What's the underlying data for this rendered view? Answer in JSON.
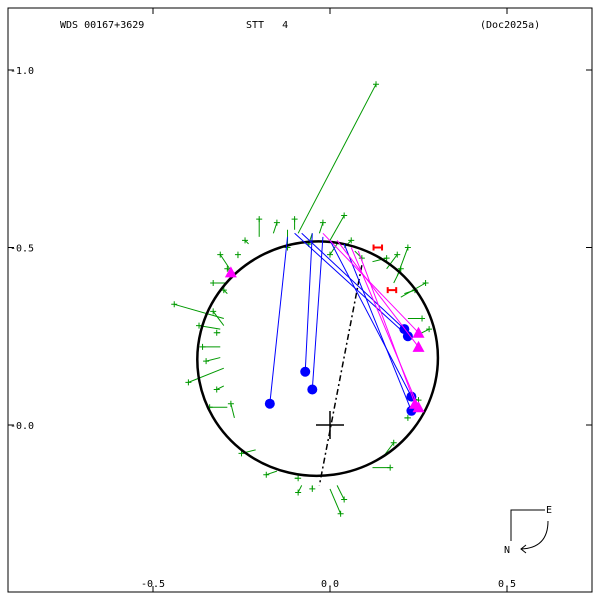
{
  "header": {
    "wds": "WDS 00167+3629",
    "discoverer": "STT   4",
    "reference": "(Doc2025a)"
  },
  "compass": {
    "east_label": "E",
    "north_label": "N"
  },
  "chart_data": {
    "type": "scatter",
    "title": "",
    "xlabel": "",
    "ylabel": "",
    "xlim": [
      -0.93,
      0.76
    ],
    "ylim": [
      -0.49,
      1.2
    ],
    "x_ticks": [
      {
        "v": -0.5,
        "t": "-0.5"
      },
      {
        "v": 0.0,
        "t": "0.0"
      },
      {
        "v": 0.5,
        "t": "0.5"
      }
    ],
    "y_ticks": [
      {
        "v": 1.0,
        "t": "-1.0"
      },
      {
        "v": 0.5,
        "t": "-0.5"
      },
      {
        "v": 0.0,
        "t": "-0.0"
      }
    ],
    "orbit_ellipse": {
      "center": [
        -0.035,
        0.187
      ],
      "rx": 0.34,
      "ry": 0.33,
      "tilt_deg": -8,
      "color": "#000000"
    },
    "primary_position": [
      0.0,
      0.0
    ],
    "line_of_apsides": [
      [
        0.09,
        0.45
      ],
      [
        -0.03,
        -0.17
      ]
    ],
    "series": [
      {
        "kind": "micrometer",
        "color": "#009900",
        "points": [
          {
            "obs": [
              0.13,
              0.96
            ],
            "calc": [
              -0.09,
              0.54
            ]
          },
          {
            "obs": [
              -0.44,
              0.34
            ],
            "calc": [
              -0.3,
              0.3
            ]
          },
          {
            "obs": [
              -0.31,
              0.48
            ],
            "calc": [
              -0.27,
              0.42
            ]
          },
          {
            "obs": [
              -0.33,
              0.32
            ],
            "calc": [
              -0.3,
              0.28
            ]
          },
          {
            "obs": [
              -0.4,
              0.12
            ],
            "calc": [
              -0.3,
              0.16
            ]
          },
          {
            "obs": [
              -0.36,
              0.22
            ],
            "calc": [
              -0.31,
              0.22
            ]
          },
          {
            "obs": [
              -0.34,
              0.05
            ],
            "calc": [
              -0.29,
              0.05
            ]
          },
          {
            "obs": [
              -0.28,
              0.06
            ],
            "calc": [
              -0.27,
              0.02
            ]
          },
          {
            "obs": [
              -0.25,
              -0.08
            ],
            "calc": [
              -0.21,
              -0.07
            ]
          },
          {
            "obs": [
              -0.09,
              -0.15
            ],
            "calc": [
              -0.1,
              -0.15
            ]
          },
          {
            "obs": [
              -0.05,
              -0.18
            ],
            "calc": [
              -0.05,
              -0.17
            ]
          },
          {
            "obs": [
              0.03,
              -0.25
            ],
            "calc": [
              0.0,
              -0.18
            ]
          },
          {
            "obs": [
              0.04,
              -0.21
            ],
            "calc": [
              0.02,
              -0.17
            ]
          },
          {
            "obs": [
              -0.09,
              -0.19
            ],
            "calc": [
              -0.08,
              -0.17
            ]
          },
          {
            "obs": [
              -0.18,
              -0.14
            ],
            "calc": [
              -0.15,
              -0.13
            ]
          },
          {
            "obs": [
              0.17,
              -0.12
            ],
            "calc": [
              0.12,
              -0.12
            ]
          },
          {
            "obs": [
              0.18,
              -0.05
            ],
            "calc": [
              0.15,
              -0.09
            ]
          },
          {
            "obs": [
              0.22,
              0.02
            ],
            "calc": [
              0.21,
              0.02
            ]
          },
          {
            "obs": [
              0.25,
              0.07
            ],
            "calc": [
              0.22,
              0.08
            ]
          },
          {
            "obs": [
              0.28,
              0.27
            ],
            "calc": [
              0.24,
              0.25
            ]
          },
          {
            "obs": [
              0.26,
              0.3
            ],
            "calc": [
              0.22,
              0.3
            ]
          },
          {
            "obs": [
              0.27,
              0.4
            ],
            "calc": [
              0.2,
              0.36
            ]
          },
          {
            "obs": [
              0.24,
              0.38
            ],
            "calc": [
              0.21,
              0.37
            ]
          },
          {
            "obs": [
              0.2,
              0.44
            ],
            "calc": [
              0.18,
              0.4
            ]
          },
          {
            "obs": [
              0.16,
              0.47
            ],
            "calc": [
              0.12,
              0.46
            ]
          },
          {
            "obs": [
              0.06,
              0.52
            ],
            "calc": [
              0.04,
              0.5
            ]
          },
          {
            "obs": [
              0.04,
              0.59
            ],
            "calc": [
              0.0,
              0.52
            ]
          },
          {
            "obs": [
              -0.02,
              0.57
            ],
            "calc": [
              -0.03,
              0.54
            ]
          },
          {
            "obs": [
              -0.1,
              0.58
            ],
            "calc": [
              -0.1,
              0.55
            ]
          },
          {
            "obs": [
              -0.15,
              0.57
            ],
            "calc": [
              -0.16,
              0.54
            ]
          },
          {
            "obs": [
              -0.2,
              0.58
            ],
            "calc": [
              -0.2,
              0.53
            ]
          },
          {
            "obs": [
              -0.24,
              0.52
            ],
            "calc": [
              -0.23,
              0.51
            ]
          },
          {
            "obs": [
              -0.26,
              0.48
            ],
            "calc": [
              -0.26,
              0.47
            ]
          },
          {
            "obs": [
              -0.29,
              0.44
            ],
            "calc": [
              -0.28,
              0.43
            ]
          },
          {
            "obs": [
              -0.3,
              0.38
            ],
            "calc": [
              -0.29,
              0.37
            ]
          },
          {
            "obs": [
              -0.32,
              0.26
            ],
            "calc": [
              -0.31,
              0.26
            ]
          },
          {
            "obs": [
              -0.35,
              0.18
            ],
            "calc": [
              -0.31,
              0.19
            ]
          },
          {
            "obs": [
              -0.32,
              0.1
            ],
            "calc": [
              -0.3,
              0.11
            ]
          },
          {
            "obs": [
              0.19,
              0.48
            ],
            "calc": [
              0.16,
              0.44
            ]
          },
          {
            "obs": [
              0.22,
              0.5
            ],
            "calc": [
              0.19,
              0.42
            ]
          },
          {
            "obs": [
              -0.06,
              0.51
            ],
            "calc": [
              -0.05,
              0.54
            ]
          },
          {
            "obs": [
              -0.12,
              0.5
            ],
            "calc": [
              -0.12,
              0.55
            ]
          },
          {
            "obs": [
              0.0,
              0.48
            ],
            "calc": [
              0.02,
              0.51
            ]
          },
          {
            "obs": [
              0.09,
              0.47
            ],
            "calc": [
              0.07,
              0.49
            ]
          },
          {
            "obs": [
              -0.33,
              0.4
            ],
            "calc": [
              -0.29,
              0.4
            ]
          },
          {
            "obs": [
              -0.37,
              0.28
            ],
            "calc": [
              -0.31,
              0.27
            ]
          }
        ]
      },
      {
        "kind": "interferometric",
        "color": "#0000ff",
        "points": [
          {
            "obs": [
              -0.17,
              0.06
            ],
            "calc": [
              -0.12,
              0.53
            ]
          },
          {
            "obs": [
              -0.07,
              0.15
            ],
            "calc": [
              -0.05,
              0.54
            ]
          },
          {
            "obs": [
              -0.05,
              0.1
            ],
            "calc": [
              -0.02,
              0.53
            ]
          },
          {
            "obs": [
              0.21,
              0.27
            ],
            "calc": [
              -0.08,
              0.54
            ]
          },
          {
            "obs": [
              0.22,
              0.25
            ],
            "calc": [
              -0.1,
              0.54
            ]
          },
          {
            "obs": [
              0.23,
              0.08
            ],
            "calc": [
              0.0,
              0.52
            ]
          },
          {
            "obs": [
              0.23,
              0.04
            ],
            "calc": [
              0.04,
              0.51
            ]
          }
        ]
      },
      {
        "kind": "speckle",
        "color": "#ff00ff",
        "points": [
          {
            "obs": [
              0.25,
              0.26
            ],
            "calc": [
              -0.02,
              0.54
            ]
          },
          {
            "obs": [
              0.25,
              0.22
            ],
            "calc": [
              0.02,
              0.52
            ]
          },
          {
            "obs": [
              0.25,
              0.05
            ],
            "calc": [
              0.06,
              0.5
            ]
          },
          {
            "obs": [
              0.24,
              0.06
            ],
            "calc": [
              0.08,
              0.49
            ]
          },
          {
            "obs": [
              -0.28,
              0.43
            ],
            "calc": [
              -0.27,
              0.43
            ]
          }
        ]
      },
      {
        "kind": "error_bar",
        "color": "#ff0000",
        "points": [
          {
            "x": 0.135,
            "y": 0.5,
            "half_width": 0.012
          },
          {
            "x": 0.175,
            "y": 0.38,
            "half_width": 0.012
          }
        ]
      }
    ],
    "grid": false
  }
}
